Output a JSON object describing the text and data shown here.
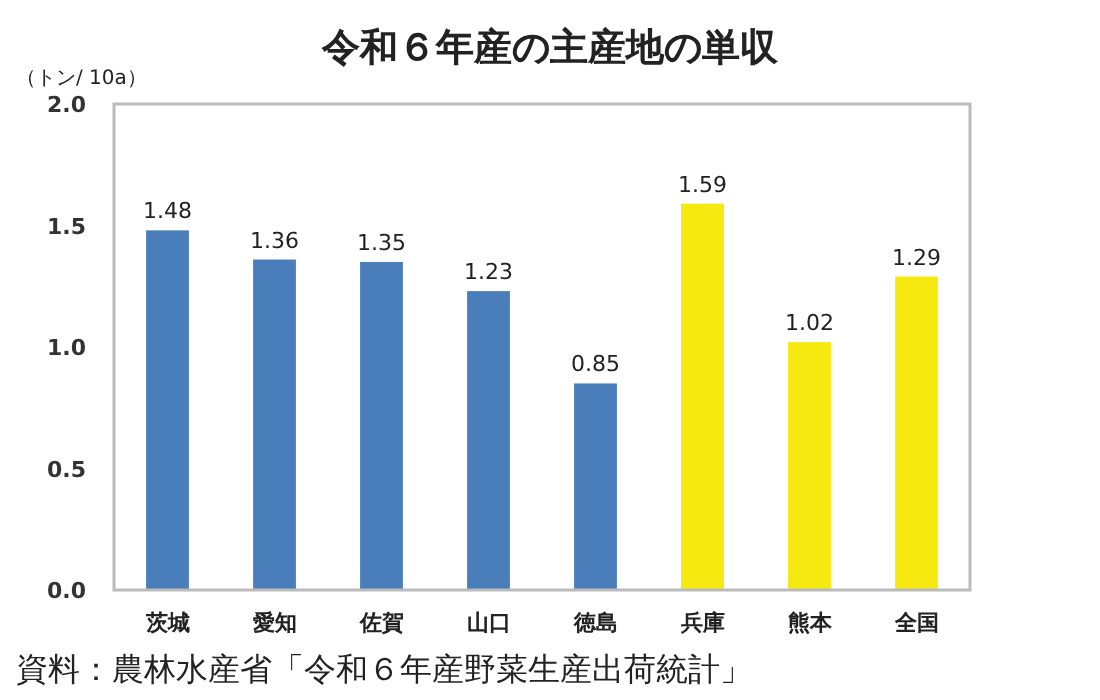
{
  "chart_data": {
    "type": "bar",
    "title": "令和６年産の主産地の単収",
    "ylabel": "（トン/ 10a）",
    "categories": [
      "茨城",
      "愛知",
      "佐賀",
      "山口",
      "徳島",
      "兵庫",
      "熊本",
      "全国"
    ],
    "values": [
      1.48,
      1.36,
      1.35,
      1.23,
      0.85,
      1.59,
      1.02,
      1.29
    ],
    "colors": [
      "#4a7ebb",
      "#4a7ebb",
      "#4a7ebb",
      "#4a7ebb",
      "#4a7ebb",
      "#f5e90f",
      "#f5e90f",
      "#f5e90f"
    ],
    "ylim": [
      0,
      2
    ],
    "yticks": [
      {
        "value": 0,
        "label": "0.0"
      },
      {
        "value": 0.5,
        "label": "0.5"
      },
      {
        "value": 1,
        "label": "1.0"
      },
      {
        "value": 1.5,
        "label": "1.5"
      },
      {
        "value": 2,
        "label": "2.0"
      }
    ],
    "data_labels": true,
    "grid": false,
    "annotations": [
      "資料：農林水産省「令和６年産野菜生産出荷統計」"
    ]
  }
}
